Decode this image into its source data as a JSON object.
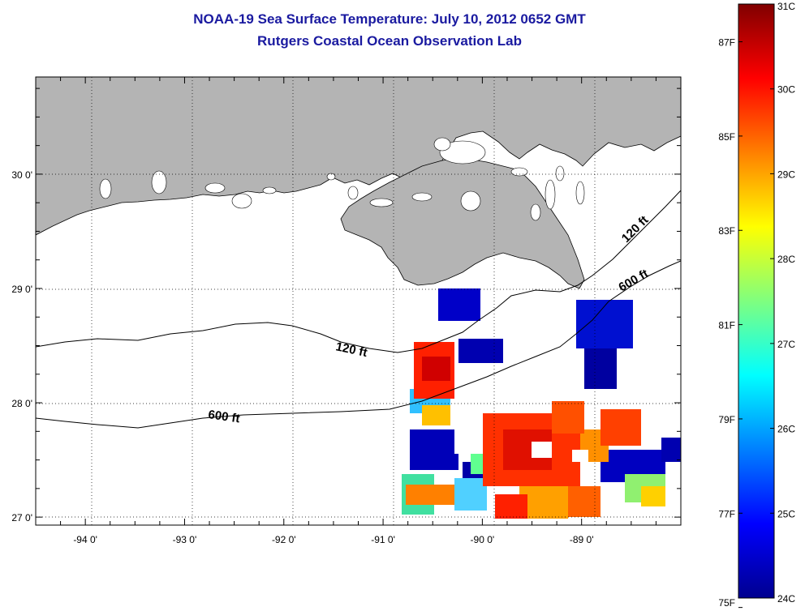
{
  "title": "NOAA-19 Sea Surface Temperature:  July 10, 2012 0652 GMT",
  "subtitle": "Rutgers Coastal Ocean Observation Lab",
  "map": {
    "lon_range": [
      -94.5,
      -88.0
    ],
    "lat_range": [
      26.93,
      30.85
    ],
    "lon_ticks": [
      "-94 0'",
      "-93 0'",
      "-92 0'",
      "-91 0'",
      "-90 0'",
      "-89 0'"
    ],
    "lon_tick_values": [
      -94,
      -93,
      -92,
      -91,
      -90,
      -89
    ],
    "lat_ticks": [
      "27 0'",
      "28 0'",
      "29 0'",
      "30 0'"
    ],
    "lat_tick_values": [
      27,
      28,
      29,
      30
    ],
    "grid": "dotted",
    "land_color": "#b4b4b4",
    "contours": [
      {
        "label": "120 ft"
      },
      {
        "label": "600 ft"
      },
      {
        "label": "120 ft"
      },
      {
        "label": "600 ft"
      }
    ]
  },
  "colorbar": {
    "min_c": 24,
    "max_c": 31,
    "colormap": "jet",
    "celsius_labels": [
      "31C",
      "30C",
      "29C",
      "28C",
      "27C",
      "26C",
      "25C",
      "24C"
    ],
    "celsius_values": [
      31,
      30,
      29,
      28,
      27,
      26,
      25,
      24
    ],
    "fahrenheit_labels": [
      "87F",
      "85F",
      "83F",
      "81F",
      "79F",
      "77F",
      "75F"
    ],
    "fahrenheit_values": [
      87,
      85,
      83,
      81,
      79,
      77,
      75
    ]
  }
}
